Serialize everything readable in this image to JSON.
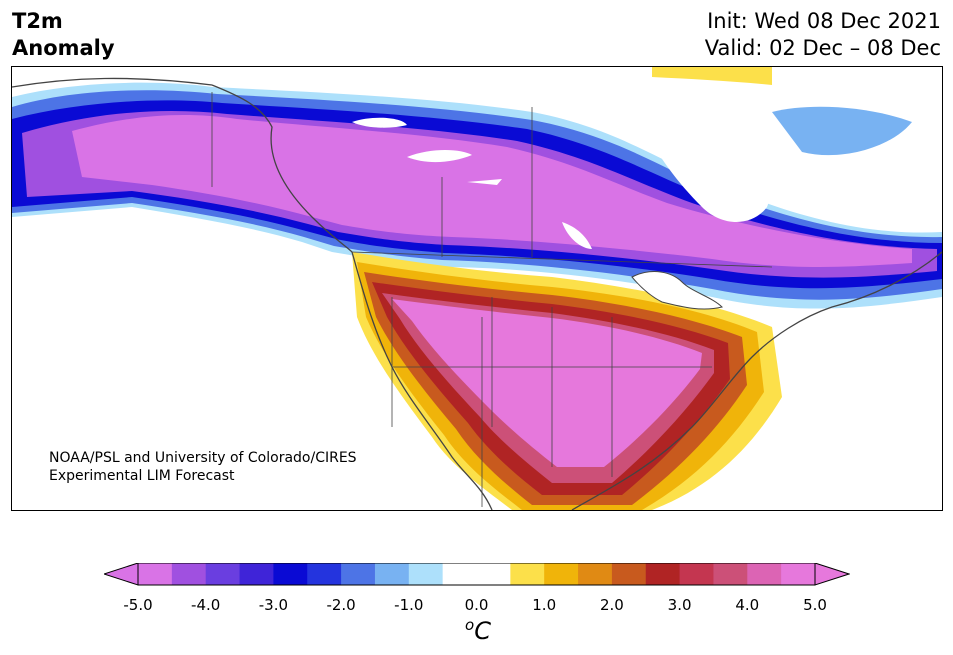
{
  "header": {
    "title_line1": "T2m",
    "title_line2": "Anomaly",
    "init": "Init: Wed 08 Dec 2021",
    "valid": "Valid: 02 Dec – 08 Dec"
  },
  "map": {
    "region": "North America",
    "credit_line1": "NOAA/PSL and University of Colorado/CIRES",
    "credit_line2": "Experimental LIM Forecast"
  },
  "colorbar": {
    "unit_base": "C",
    "unit_super": "o",
    "ticks": [
      "-5.0",
      "-4.0",
      "-3.0",
      "-2.0",
      "-1.0",
      "0.0",
      "1.0",
      "2.0",
      "3.0",
      "4.0",
      "5.0"
    ],
    "colors": [
      "#d973e6",
      "#a050e0",
      "#6a3ee0",
      "#3f24d8",
      "#0a0ad4",
      "#2434de",
      "#4d74e6",
      "#78b2f2",
      "#ade0fb",
      "#ffffff",
      "#ffffff",
      "#fce04a",
      "#f0b40a",
      "#e08a14",
      "#c85a1e",
      "#b02424",
      "#c43650",
      "#cc5078",
      "#dc64b4",
      "#e678dc"
    ],
    "low_extend_color": "#d973e6",
    "high_extend_color": "#e678dc"
  }
}
